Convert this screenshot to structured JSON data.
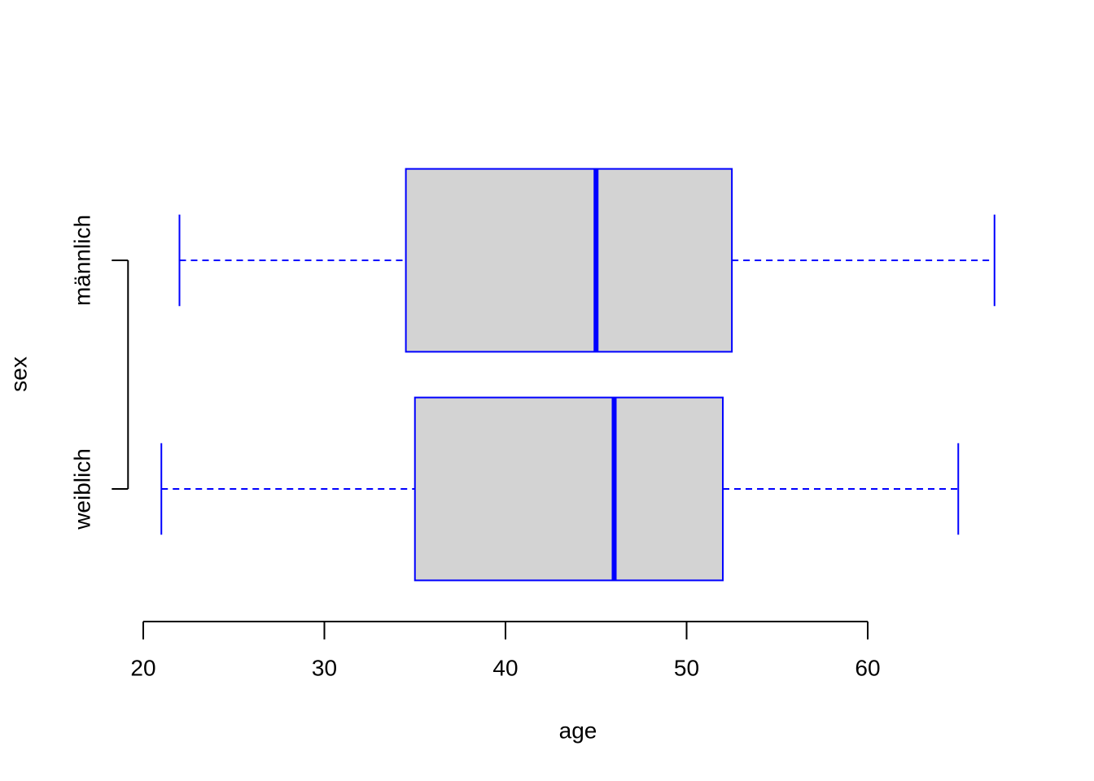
{
  "chart_data": {
    "type": "boxplot",
    "orientation": "horizontal",
    "xlabel": "age",
    "ylabel": "sex",
    "categories": [
      "weiblich",
      "männlich"
    ],
    "min": [
      21,
      22
    ],
    "q1": [
      35,
      34.5
    ],
    "median": [
      46,
      45
    ],
    "q3": [
      52,
      52.5
    ],
    "max": [
      65,
      67
    ],
    "fill": "#d3d3d3",
    "color": "#0000ff",
    "xlim": [
      19.16,
      68.84
    ],
    "xticks": [
      20,
      30,
      40,
      50,
      60
    ]
  }
}
